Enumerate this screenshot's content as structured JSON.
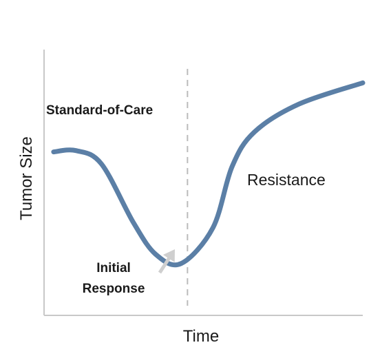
{
  "chart_data": {
    "type": "line",
    "title": "",
    "xlabel": "Time",
    "ylabel": "Tumor Size",
    "xlim": [
      0,
      10
    ],
    "ylim": [
      0,
      10
    ],
    "grid": false,
    "x_ticks": [],
    "y_ticks": [],
    "series": [
      {
        "color": "#5b7fa6",
        "x": [
          0.3,
          1.0,
          1.8,
          2.8,
          3.5,
          4.3,
          5.3,
          5.9,
          6.6,
          8.0,
          10.0
        ],
        "y": [
          6.15,
          6.2,
          5.7,
          3.5,
          2.3,
          1.95,
          3.3,
          5.6,
          6.9,
          7.95,
          8.75
        ]
      }
    ],
    "reference_lines": [
      {
        "orientation": "vertical",
        "x": 4.5,
        "style": "dashed",
        "color": "#bbbbbb"
      }
    ],
    "annotations": {
      "standard_of_care": "Standard-of-Care",
      "initial_response": [
        "Initial",
        "Response"
      ],
      "resistance": "Resistance"
    },
    "colors": {
      "axis": "#c8c8c8",
      "curve": "#5b7fa6",
      "arrow": "#cfcfcf",
      "text": "#1a1a1a"
    }
  }
}
